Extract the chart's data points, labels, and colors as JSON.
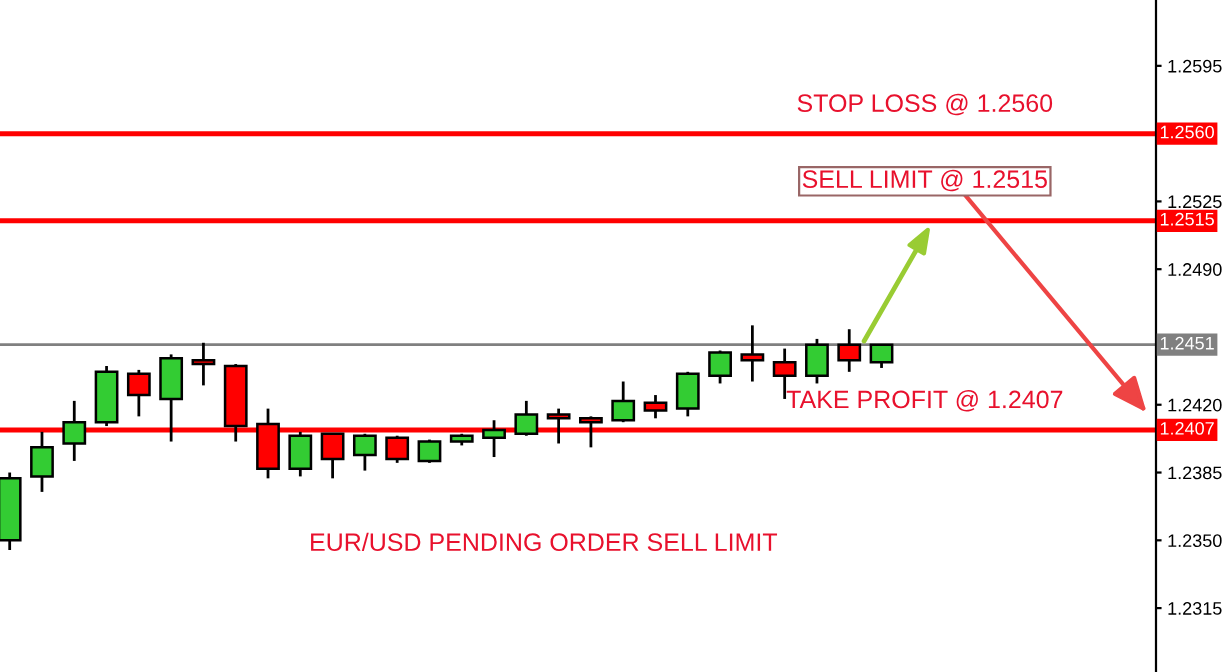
{
  "chart_data": {
    "type": "candlestick",
    "categories": [
      null,
      null,
      null,
      null,
      null,
      null,
      null,
      null,
      null,
      null,
      null,
      null,
      null,
      null,
      null,
      null,
      null,
      null,
      null,
      null,
      null,
      null,
      null,
      null,
      null,
      null,
      null,
      null,
      null,
      null,
      null,
      null,
      null,
      null,
      null,
      null
    ],
    "ohlc": [
      [
        1.235,
        1.2385,
        1.2345,
        1.2382
      ],
      [
        1.2383,
        1.2406,
        1.2375,
        1.2398
      ],
      [
        1.24,
        1.2422,
        1.2391,
        1.2411
      ],
      [
        1.2411,
        1.244,
        1.2409,
        1.2437
      ],
      [
        1.2436,
        1.2438,
        1.2414,
        1.2425
      ],
      [
        1.2423,
        1.2446,
        1.2401,
        1.2444
      ],
      [
        1.2443,
        1.2452,
        1.243,
        1.2441
      ],
      [
        1.244,
        1.2441,
        1.2401,
        1.2409
      ],
      [
        1.241,
        1.2418,
        1.2382,
        1.2387
      ],
      [
        1.2387,
        1.2406,
        1.2383,
        1.2404
      ],
      [
        1.2405,
        1.2405,
        1.2382,
        1.2392
      ],
      [
        1.2394,
        1.2405,
        1.2386,
        1.2404
      ],
      [
        1.2403,
        1.2404,
        1.239,
        1.2392
      ],
      [
        1.2391,
        1.2402,
        1.239,
        1.2401
      ],
      [
        1.2401,
        1.2405,
        1.2399,
        1.2404
      ],
      [
        1.2403,
        1.2412,
        1.2393,
        1.2407
      ],
      [
        1.2405,
        1.2422,
        1.2404,
        1.2415
      ],
      [
        1.2415,
        1.2418,
        1.24,
        1.2413
      ],
      [
        1.2413,
        1.2414,
        1.2398,
        1.2411
      ],
      [
        1.2412,
        1.2432,
        1.2411,
        1.2422
      ],
      [
        1.2421,
        1.2425,
        1.2413,
        1.2417
      ],
      [
        1.2418,
        1.2437,
        1.2414,
        1.2436
      ],
      [
        1.2435,
        1.2448,
        1.2431,
        1.2447
      ],
      [
        1.2446,
        1.2461,
        1.2432,
        1.2443
      ],
      [
        1.2442,
        1.2449,
        1.2423,
        1.2435
      ],
      [
        1.2435,
        1.2454,
        1.2431,
        1.2451
      ],
      [
        1.2451,
        1.2459,
        1.2437,
        1.2443
      ],
      [
        1.2442,
        1.2451,
        1.2439,
        1.2451
      ],
      null,
      null,
      null,
      null,
      null,
      null,
      null,
      null
    ],
    "colors": [
      "#33cc33",
      "#33cc33",
      "#33cc33",
      "#33cc33",
      "#ff0000",
      "#33cc33",
      "#ff0000",
      "#ff0000",
      "#ff0000",
      "#33cc33",
      "#ff0000",
      "#33cc33",
      "#ff0000",
      "#33cc33",
      "#33cc33",
      "#33cc33",
      "#33cc33",
      "#ff0000",
      "#ff0000",
      "#33cc33",
      "#ff0000",
      "#33cc33",
      "#33cc33",
      "#ff0000",
      "#ff0000",
      "#33cc33",
      "#ff0000",
      "#33cc33",
      null,
      null,
      null,
      null,
      null,
      null,
      null,
      null
    ],
    "ylim": [
      1.2282,
      1.2629
    ],
    "yticks": [
      1.2595,
      {
        "value": 1.256,
        "label": null
      },
      1.2525,
      {
        "value": 1.249,
        "label": "1.2490"
      },
      {
        "value": 1.2455,
        "label": null
      },
      {
        "value": 1.242,
        "label": "1.2420"
      },
      1.2385,
      {
        "value": 1.235,
        "label": "1.2350"
      },
      1.2315
    ],
    "ref_lines": [
      {
        "axis": "y",
        "value": 1.256,
        "label": "1.2560",
        "color": "#ff0000"
      },
      {
        "axis": "y",
        "value": 1.2515,
        "label": "1.2515",
        "color": "#ff0000"
      },
      {
        "axis": "y",
        "value": 1.2451,
        "label": "1.2451",
        "color": "#808080"
      },
      {
        "axis": "y",
        "value": 1.2407,
        "label": "1.2407",
        "color": "#ff0000"
      }
    ],
    "annotations": [
      {
        "text": "STOP LOSS @ 1.2560",
        "y": 1.256
      },
      {
        "text": "SELL LIMIT @ 1.2515",
        "y": 1.2515
      },
      {
        "text": "TAKE PROFIT @ 1.2407",
        "y": 1.2407
      },
      "EUR/USD PENDING ORDER SELL LIMIT"
    ],
    "grid": false
  }
}
